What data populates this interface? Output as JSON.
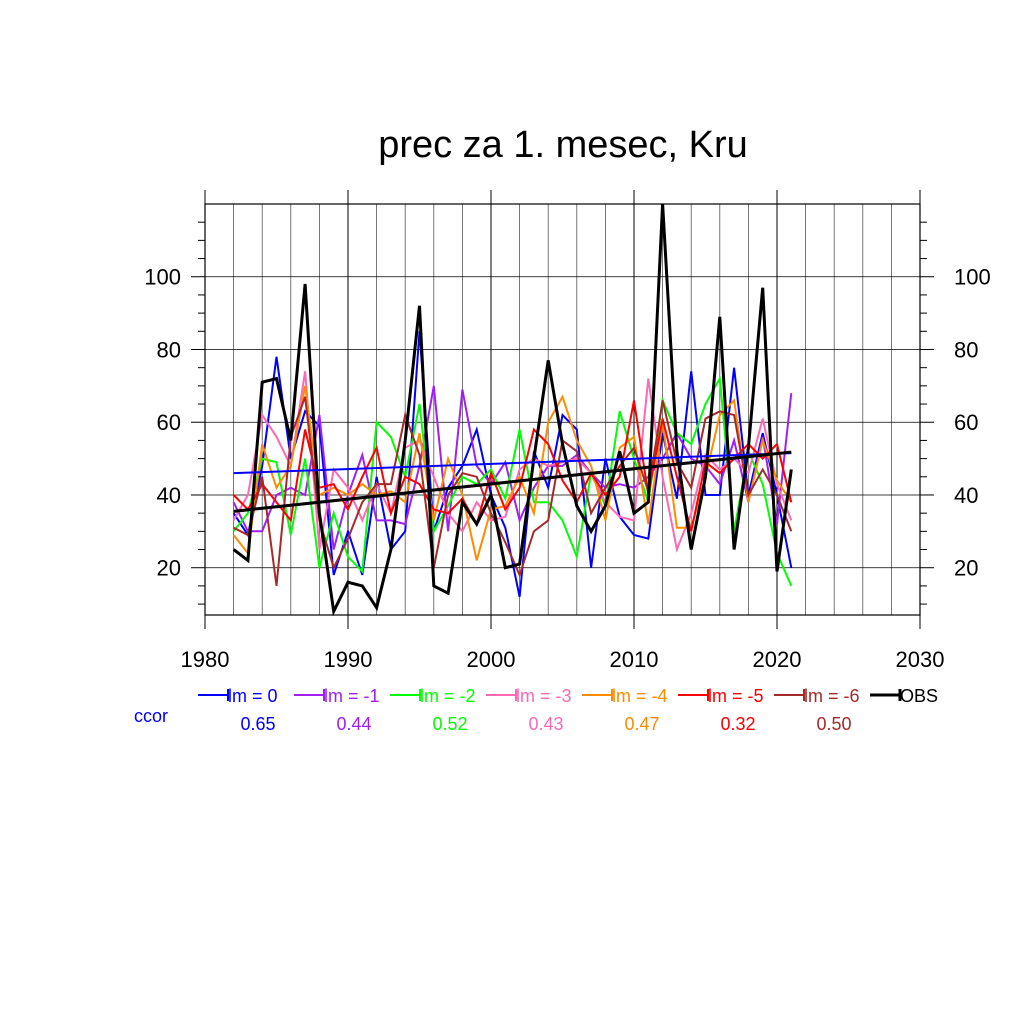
{
  "chart_data": {
    "type": "line",
    "title": "prec za 1. mesec, Kru",
    "xlabel": "",
    "ylabel": "",
    "xlim": [
      1980,
      2030
    ],
    "ylim": [
      7,
      120
    ],
    "x_ticks": [
      1980,
      1990,
      2000,
      2010,
      2020,
      2030
    ],
    "y_ticks": [
      20,
      40,
      60,
      80,
      100
    ],
    "grid": true,
    "legend_position": "bottom",
    "ccor_label": "ccor",
    "x": [
      1982,
      1983,
      1984,
      1985,
      1986,
      1987,
      1988,
      1989,
      1990,
      1991,
      1992,
      1993,
      1994,
      1995,
      1996,
      1997,
      1998,
      1999,
      2000,
      2001,
      2002,
      2003,
      2004,
      2005,
      2006,
      2007,
      2008,
      2009,
      2010,
      2011,
      2012,
      2013,
      2014,
      2015,
      2016,
      2017,
      2018,
      2019,
      2020,
      2021
    ],
    "series": [
      {
        "name": "lm = 0",
        "ccor": "0.65",
        "color": "#0000ff",
        "width": 2,
        "values": [
          35,
          29,
          48,
          78,
          50,
          63,
          59,
          18,
          30,
          18,
          45,
          25,
          30,
          85,
          30,
          42,
          48,
          58,
          40,
          31,
          12,
          52,
          42,
          62,
          58,
          20,
          50,
          34,
          29,
          28,
          57,
          39,
          74,
          40,
          40,
          75,
          40,
          57,
          40,
          20
        ]
      },
      {
        "name": "lm = -1",
        "ccor": "0.44",
        "color": "#a020f0",
        "width": 2,
        "values": [
          38,
          30,
          30,
          40,
          42,
          40,
          62,
          25,
          40,
          51,
          33,
          33,
          32,
          48,
          70,
          30,
          69,
          48,
          43,
          49,
          33,
          42,
          48,
          48,
          51,
          46,
          42,
          43,
          42,
          45,
          50,
          57,
          50,
          48,
          43,
          55,
          38,
          56,
          32,
          68
        ]
      },
      {
        "name": "lm = -2",
        "ccor": "0.52",
        "color": "#00ff00",
        "width": 2,
        "values": [
          30,
          35,
          50,
          49,
          29,
          50,
          20,
          35,
          23,
          19,
          60,
          56,
          45,
          65,
          30,
          37,
          45,
          43,
          47,
          39,
          58,
          38,
          38,
          33,
          23,
          46,
          37,
          63,
          50,
          38,
          66,
          57,
          54,
          65,
          72,
          30,
          52,
          43,
          24,
          15
        ]
      },
      {
        "name": "lm = -3",
        "ccor": "0.43",
        "color": "#ff69b4",
        "width": 2,
        "values": [
          33,
          40,
          62,
          56,
          48,
          74,
          25,
          47,
          42,
          33,
          43,
          35,
          53,
          55,
          45,
          35,
          30,
          38,
          33,
          34,
          47,
          50,
          48,
          49,
          50,
          46,
          38,
          34,
          33,
          72,
          45,
          25,
          35,
          51,
          47,
          50,
          46,
          61,
          43,
          33
        ]
      },
      {
        "name": "lm = -4",
        "ccor": "0.47",
        "color": "#ff8c00",
        "width": 2,
        "values": [
          29,
          24,
          54,
          42,
          48,
          70,
          40,
          42,
          40,
          43,
          40,
          41,
          38,
          57,
          33,
          50,
          40,
          22,
          36,
          37,
          45,
          35,
          60,
          67,
          55,
          48,
          33,
          53,
          56,
          32,
          60,
          31,
          31,
          45,
          62,
          66,
          38,
          55,
          44,
          38
        ]
      },
      {
        "name": "lm = -5",
        "ccor": "0.32",
        "color": "#ff0000",
        "width": 2,
        "values": [
          40,
          36,
          43,
          38,
          33,
          58,
          42,
          43,
          36,
          45,
          53,
          35,
          45,
          43,
          36,
          35,
          39,
          32,
          46,
          36,
          42,
          58,
          54,
          44,
          38,
          46,
          40,
          45,
          66,
          40,
          61,
          45,
          30,
          49,
          46,
          50,
          54,
          50,
          54,
          38
        ]
      },
      {
        "name": "lm = -6",
        "ccor": "0.50",
        "color": "#a52a2a",
        "width": 2,
        "values": [
          31,
          29,
          45,
          15,
          56,
          67,
          33,
          20,
          28,
          38,
          43,
          43,
          62,
          51,
          20,
          40,
          46,
          45,
          35,
          27,
          18,
          30,
          33,
          55,
          52,
          35,
          42,
          48,
          53,
          41,
          66,
          49,
          42,
          61,
          63,
          62,
          40,
          47,
          40,
          30
        ]
      },
      {
        "name": "OBS",
        "ccor": "",
        "color": "#000000",
        "width": 3,
        "values": [
          25,
          22,
          71,
          72,
          55,
          98,
          35,
          8,
          16,
          15,
          9,
          25,
          55,
          92,
          15,
          13,
          38,
          32,
          40,
          20,
          21,
          50,
          77,
          54,
          37,
          30,
          37,
          52,
          35,
          38,
          120,
          52,
          25,
          45,
          89,
          25,
          53,
          97,
          19,
          47
        ]
      }
    ],
    "trends": [
      {
        "name": "lm = 0 trend",
        "color": "#0000ff",
        "width": 2,
        "x": [
          1982,
          2021
        ],
        "values": [
          46,
          51.5
        ]
      },
      {
        "name": "OBS trend",
        "color": "#000000",
        "width": 3,
        "x": [
          1982,
          2021
        ],
        "values": [
          35.5,
          51.8
        ]
      }
    ]
  }
}
